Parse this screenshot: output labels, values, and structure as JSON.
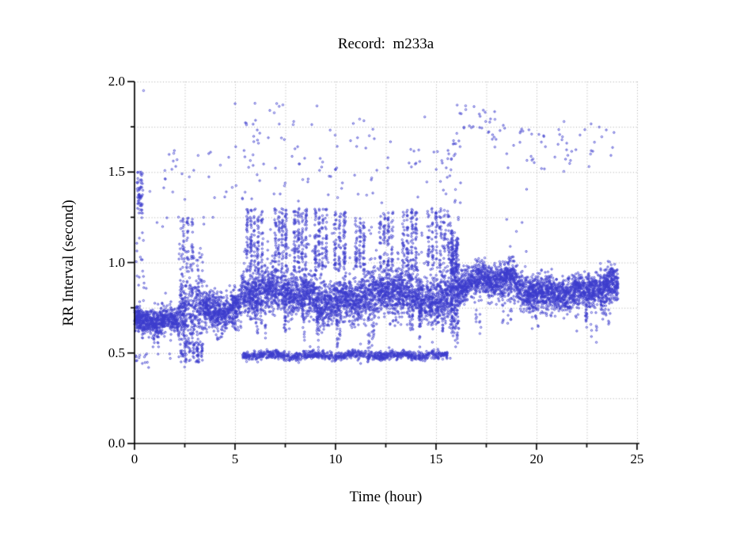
{
  "page": {
    "background": "#ffffff"
  },
  "chart_data": {
    "type": "scatter",
    "title": "Record:  m233a",
    "xlabel": "Time (hour)",
    "ylabel": "RR Interval (second)",
    "series_name": "RR intervals",
    "xlim": [
      0,
      25
    ],
    "ylim": [
      0.0,
      2.0
    ],
    "xticks": [
      "0",
      "5",
      "10",
      "15",
      "20",
      "25"
    ],
    "yticks": [
      "0.0",
      "0.5",
      "1.0",
      "1.5",
      "2.0"
    ],
    "x_minor_step": 2.5,
    "y_minor_step": 0.25,
    "grid": {
      "style": "dotted",
      "color": "#ababab",
      "x_step": 2.5,
      "y_step": 0.25
    },
    "axis_color": "#000000",
    "point_style": {
      "color": "#3c3ccd",
      "radius": 1.15,
      "shape": "open-circle"
    },
    "generator": {
      "seed": 1337,
      "density_per_hour": 330,
      "spikes_per_hour": 2.5,
      "wander": {
        "amp1": 0.025,
        "f1": 1.1,
        "p1": 0.4,
        "amp2": 0.016,
        "f2": 3.7,
        "p2": 1.3
      },
      "band_segments": [
        {
          "t0": 0.0,
          "t1": 2.2,
          "mean": 0.655,
          "sd": 0.035,
          "dip_p": 0.03,
          "dip_min": 0.08,
          "dip_max": 0.2,
          "up_p": 0.012,
          "up_min": 0.05,
          "up_max": 0.22
        },
        {
          "t0": 2.2,
          "t1": 3.4,
          "mean": 0.74,
          "sd": 0.1,
          "dip_p": 0.06,
          "dip_min": 0.05,
          "dip_max": 0.22,
          "up_p": 0.1,
          "up_min": 0.05,
          "up_max": 0.38
        },
        {
          "t0": 3.4,
          "t1": 5.3,
          "mean": 0.755,
          "sd": 0.05,
          "dip_p": 0.025,
          "dip_min": 0.05,
          "dip_max": 0.18,
          "up_p": 0.02,
          "up_min": 0.04,
          "up_max": 0.12
        },
        {
          "t0": 5.3,
          "t1": 9.0,
          "mean": 0.82,
          "sd": 0.06,
          "dip_p": 0.075,
          "dip_min": 0.08,
          "dip_max": 0.3,
          "up_p": 0.02,
          "up_min": 0.05,
          "up_max": 0.14
        },
        {
          "t0": 9.0,
          "t1": 12.5,
          "mean": 0.8,
          "sd": 0.06,
          "dip_p": 0.08,
          "dip_min": 0.08,
          "dip_max": 0.28,
          "up_p": 0.02,
          "up_min": 0.05,
          "up_max": 0.15
        },
        {
          "t0": 12.5,
          "t1": 15.7,
          "mean": 0.815,
          "sd": 0.065,
          "dip_p": 0.08,
          "dip_min": 0.08,
          "dip_max": 0.3,
          "up_p": 0.02,
          "up_min": 0.05,
          "up_max": 0.15
        },
        {
          "t0": 15.7,
          "t1": 16.15,
          "mean": 0.88,
          "sd": 0.13,
          "dip_p": 0.05,
          "dip_min": 0.05,
          "dip_max": 0.25,
          "up_p": 0.05,
          "up_min": 0.05,
          "up_max": 0.25,
          "density": 700
        },
        {
          "t0": 16.15,
          "t1": 19.0,
          "mean": 0.885,
          "sd": 0.045,
          "dip_p": 0.04,
          "dip_min": 0.08,
          "dip_max": 0.3,
          "up_p": 0.01,
          "up_min": 0.03,
          "up_max": 0.1
        },
        {
          "t0": 19.0,
          "t1": 20.5,
          "mean": 0.84,
          "sd": 0.05,
          "dip_p": 0.05,
          "dip_min": 0.08,
          "dip_max": 0.25,
          "up_p": 0.01,
          "up_min": 0.03,
          "up_max": 0.1
        },
        {
          "t0": 20.5,
          "t1": 24.05,
          "mean": 0.85,
          "sd": 0.045,
          "dip_p": 0.05,
          "dip_min": 0.08,
          "dip_max": 0.24,
          "up_p": 0.01,
          "up_min": 0.03,
          "up_max": 0.1
        }
      ],
      "low_line": {
        "t0": 5.35,
        "t1": 15.6,
        "mean": 0.487,
        "sd": 0.012,
        "per_hour": 95,
        "wave_amp": 0.006,
        "wave_freq": 3.0
      },
      "clusters": [
        {
          "name": "start-high",
          "t0": 0.12,
          "t1": 0.42,
          "y0": 1.27,
          "y1": 1.5,
          "n": 60,
          "streaky": false
        },
        {
          "name": "start-mid",
          "t0": 0.05,
          "t1": 0.5,
          "y0": 0.85,
          "y1": 1.27,
          "n": 16,
          "streaky": false
        },
        {
          "name": "start-low",
          "t0": 0.05,
          "t1": 0.65,
          "y0": 0.44,
          "y1": 0.5,
          "n": 12,
          "streaky": false
        },
        {
          "name": "early-low",
          "t0": 2.25,
          "t1": 3.5,
          "y0": 0.45,
          "y1": 0.56,
          "n": 85,
          "streaky": true
        },
        {
          "name": "mid-2p5",
          "t0": 2.35,
          "t1": 3.0,
          "y0": 0.95,
          "y1": 1.27,
          "n": 55,
          "streaky": true
        },
        {
          "name": "mid-6",
          "t0": 5.55,
          "t1": 6.45,
          "y0": 0.95,
          "y1": 1.3,
          "n": 150,
          "streaky": true
        },
        {
          "name": "mid-7",
          "t0": 6.95,
          "t1": 7.65,
          "y0": 0.95,
          "y1": 1.3,
          "n": 115,
          "streaky": true
        },
        {
          "name": "mid-8",
          "t0": 7.9,
          "t1": 8.65,
          "y0": 0.95,
          "y1": 1.3,
          "n": 135,
          "streaky": true
        },
        {
          "name": "mid-9",
          "t0": 8.95,
          "t1": 9.65,
          "y0": 0.95,
          "y1": 1.3,
          "n": 125,
          "streaky": true
        },
        {
          "name": "mid-10",
          "t0": 9.9,
          "t1": 10.6,
          "y0": 0.95,
          "y1": 1.28,
          "n": 115,
          "streaky": true
        },
        {
          "name": "mid-11",
          "t0": 10.95,
          "t1": 11.55,
          "y0": 0.95,
          "y1": 1.25,
          "n": 85,
          "streaky": true
        },
        {
          "name": "mid-12",
          "t0": 12.15,
          "t1": 12.95,
          "y0": 0.95,
          "y1": 1.28,
          "n": 105,
          "streaky": true
        },
        {
          "name": "mid-13",
          "t0": 13.3,
          "t1": 14.15,
          "y0": 0.95,
          "y1": 1.3,
          "n": 125,
          "streaky": true
        },
        {
          "name": "mid-15",
          "t0": 14.55,
          "t1": 15.75,
          "y0": 0.95,
          "y1": 1.3,
          "n": 145,
          "streaky": true
        },
        {
          "name": "mid-trans",
          "t0": 15.75,
          "t1": 16.15,
          "y0": 0.95,
          "y1": 1.18,
          "n": 70,
          "streaky": true
        },
        {
          "name": "mid-sparse",
          "t0": 5.5,
          "t1": 15.7,
          "y0": 0.95,
          "y1": 1.2,
          "n": 110,
          "streaky": false
        },
        {
          "name": "trans-upper",
          "t0": 15.7,
          "t1": 16.3,
          "y0": 1.2,
          "y1": 1.45,
          "n": 8,
          "streaky": false
        },
        {
          "name": "high-0-5",
          "t0": 0.5,
          "t1": 5.0,
          "y0": 1.35,
          "y1": 1.62,
          "n": 26,
          "streaky": false
        },
        {
          "name": "high-1-4-low",
          "t0": 0.8,
          "t1": 4.0,
          "y0": 1.15,
          "y1": 1.35,
          "n": 10,
          "streaky": false
        },
        {
          "name": "high-4-8-low",
          "t0": 4.5,
          "t1": 8.3,
          "y0": 1.33,
          "y1": 1.52,
          "n": 12,
          "streaky": false
        },
        {
          "name": "high-5-8",
          "t0": 5.0,
          "t1": 8.3,
          "y0": 1.5,
          "y1": 1.88,
          "n": 38,
          "streaky": false
        },
        {
          "name": "high-8-15",
          "t0": 8.3,
          "t1": 15.5,
          "y0": 1.35,
          "y1": 1.75,
          "n": 55,
          "streaky": false
        },
        {
          "name": "high-8-15-top",
          "t0": 8.5,
          "t1": 15.0,
          "y0": 1.75,
          "y1": 1.9,
          "n": 6,
          "streaky": false
        },
        {
          "name": "high-18-24",
          "t0": 18.0,
          "t1": 24.1,
          "y0": 1.5,
          "y1": 1.78,
          "n": 55,
          "streaky": false
        },
        {
          "name": "right-mid",
          "t0": 18.5,
          "t1": 19.6,
          "y0": 1.05,
          "y1": 1.45,
          "n": 6,
          "streaky": false
        }
      ],
      "trends": [
        {
          "t0": 15.45,
          "t1": 16.6,
          "y0": 1.48,
          "y1": 1.86,
          "jitter": 0.05,
          "n": 24
        },
        {
          "t0": 16.6,
          "t1": 18.1,
          "y0": 1.86,
          "y1": 1.66,
          "jitter": 0.05,
          "n": 22
        }
      ],
      "singles": [
        [
          0.45,
          1.95
        ],
        [
          16.05,
          1.87
        ],
        [
          12.3,
          1.33
        ],
        [
          0.7,
          0.42
        ]
      ]
    }
  }
}
